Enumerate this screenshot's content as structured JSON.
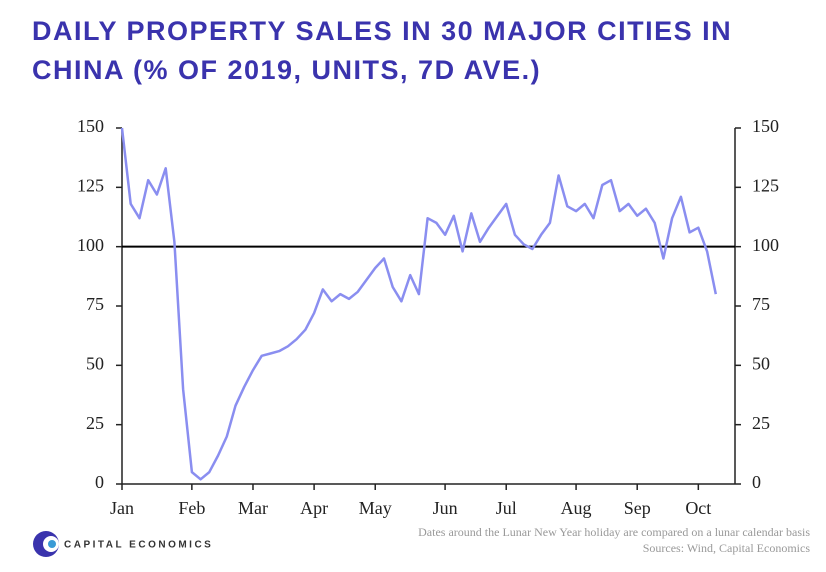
{
  "chart_data": {
    "type": "line",
    "title": [
      "DAILY PROPERTY SALES IN 30 MAJOR CITIES IN",
      "CHINA (% OF 2019, UNITS, 7D AVE.)"
    ],
    "categories": [
      "Jan",
      null,
      null,
      null,
      null,
      null,
      null,
      null,
      "Feb",
      null,
      null,
      null,
      null,
      null,
      null,
      "Mar",
      null,
      null,
      null,
      null,
      null,
      null,
      "Apr",
      null,
      null,
      null,
      null,
      null,
      null,
      "May",
      null,
      null,
      null,
      null,
      null,
      null,
      null,
      "Jun",
      null,
      null,
      null,
      null,
      null,
      null,
      "Jul",
      null,
      null,
      null,
      null,
      null,
      null,
      null,
      "Aug",
      null,
      null,
      null,
      null,
      null,
      null,
      "Sep",
      null,
      null,
      null,
      null,
      null,
      null,
      "Oct",
      null,
      null
    ],
    "series": [
      {
        "color": "#8a8ef0",
        "values": [
          150,
          118,
          112,
          128,
          122,
          133,
          102,
          40,
          5,
          2,
          5,
          12,
          20,
          33,
          41,
          48,
          54,
          55,
          56,
          58,
          61,
          65,
          72,
          82,
          77,
          80,
          78,
          81,
          86,
          91,
          95,
          83,
          77,
          88,
          80,
          112,
          110,
          105,
          113,
          98,
          114,
          102,
          108,
          113,
          118,
          105,
          101,
          99,
          105,
          110,
          130,
          117,
          115,
          118,
          112,
          126,
          128,
          115,
          118,
          113,
          116,
          110,
          95,
          112,
          121,
          106,
          108,
          98,
          80
        ]
      }
    ],
    "ylim": [
      0,
      150
    ],
    "yticks": [
      0,
      25,
      50,
      75,
      100,
      125,
      150
    ],
    "y2lim": [
      0,
      150
    ],
    "y2ticks": [
      0,
      25,
      50,
      75,
      100,
      125,
      150
    ],
    "hline": 100,
    "notes": [
      "Dates around the Lunar New Year holiday are compared on a lunar calendar basis",
      "Sources: Wind, Capital Economics"
    ],
    "logo": "CAPITAL ECONOMICS"
  }
}
